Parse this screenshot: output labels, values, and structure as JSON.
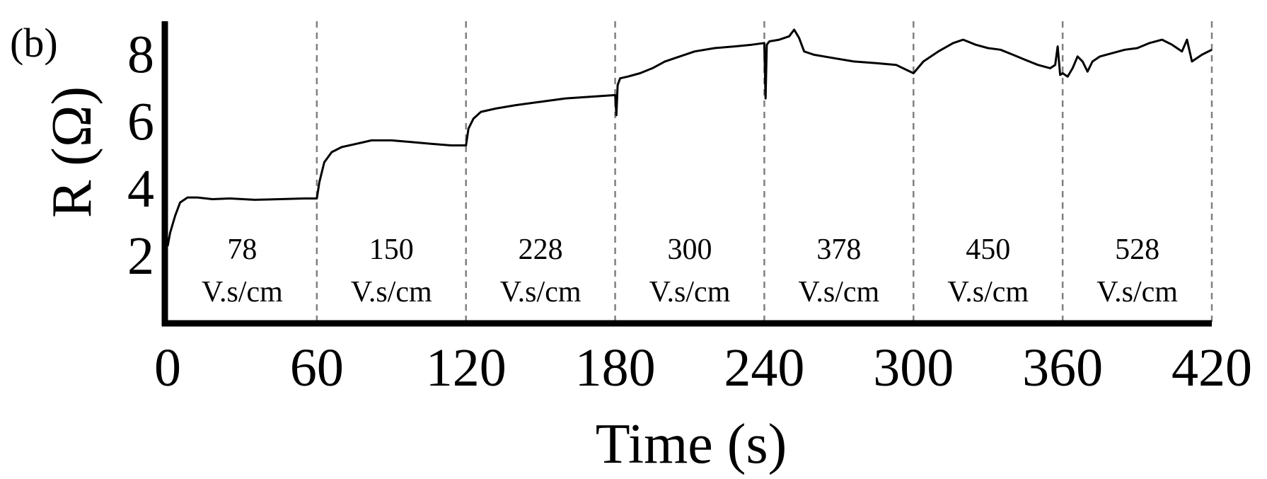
{
  "panel_label": "(b)",
  "chart_data": {
    "type": "line",
    "title": "",
    "xlabel": "Time (s)",
    "ylabel": "R (Ω)",
    "xlim": [
      0,
      420
    ],
    "ylim": [
      0,
      9
    ],
    "x_ticks": [
      0,
      60,
      120,
      180,
      240,
      300,
      360,
      420
    ],
    "y_ticks": [
      2,
      4,
      6,
      8
    ],
    "grid": false,
    "legend": "none",
    "line_color": "#000000",
    "divider_color": "#808080",
    "segment_dividers": [
      60,
      120,
      180,
      240,
      300,
      360,
      420
    ],
    "segments": [
      {
        "x_center": 30,
        "value": "78",
        "unit": "V.s/cm"
      },
      {
        "x_center": 90,
        "value": "150",
        "unit": "V.s/cm"
      },
      {
        "x_center": 150,
        "value": "228",
        "unit": "V.s/cm"
      },
      {
        "x_center": 210,
        "value": "300",
        "unit": "V.s/cm"
      },
      {
        "x_center": 270,
        "value": "378",
        "unit": "V.s/cm"
      },
      {
        "x_center": 330,
        "value": "450",
        "unit": "V.s/cm"
      },
      {
        "x_center": 390,
        "value": "528",
        "unit": "V.s/cm"
      }
    ],
    "series": [
      {
        "x": [
          0,
          1,
          3,
          5,
          8,
          12,
          18,
          25,
          35,
          45,
          55,
          60,
          61,
          63,
          66,
          70,
          76,
          82,
          90,
          98,
          106,
          114,
          120,
          121,
          123,
          126,
          132,
          140,
          150,
          160,
          170,
          180,
          180.5,
          181,
          182,
          185,
          190,
          195,
          200,
          206,
          212,
          220,
          228,
          235,
          240,
          240.5,
          241,
          242,
          246,
          250,
          252,
          254,
          256,
          260,
          268,
          276,
          285,
          293,
          300,
          304,
          310,
          316,
          320,
          325,
          330,
          335,
          340,
          345,
          350,
          355,
          357,
          358,
          359,
          360,
          362,
          364,
          366,
          368,
          370,
          372,
          375,
          380,
          385,
          390,
          395,
          400,
          404,
          408,
          410,
          412,
          416,
          420
        ],
        "y": [
          2.3,
          2.7,
          3.2,
          3.6,
          3.75,
          3.75,
          3.7,
          3.72,
          3.68,
          3.7,
          3.72,
          3.72,
          4.2,
          4.8,
          5.1,
          5.25,
          5.35,
          5.45,
          5.45,
          5.4,
          5.35,
          5.3,
          5.3,
          5.8,
          6.1,
          6.3,
          6.4,
          6.5,
          6.6,
          6.7,
          6.75,
          6.8,
          6.2,
          7.1,
          7.3,
          7.35,
          7.45,
          7.6,
          7.8,
          7.95,
          8.1,
          8.2,
          8.25,
          8.3,
          8.35,
          6.7,
          8.3,
          8.4,
          8.45,
          8.55,
          8.75,
          8.5,
          8.1,
          8.0,
          7.9,
          7.8,
          7.75,
          7.7,
          7.45,
          7.8,
          8.1,
          8.35,
          8.45,
          8.3,
          8.2,
          8.15,
          8.0,
          7.85,
          7.7,
          7.6,
          7.7,
          8.25,
          7.4,
          7.45,
          7.35,
          7.6,
          7.95,
          7.8,
          7.5,
          7.8,
          7.95,
          8.05,
          8.15,
          8.2,
          8.35,
          8.45,
          8.3,
          8.1,
          8.45,
          7.8,
          8.0,
          8.15
        ]
      }
    ]
  }
}
